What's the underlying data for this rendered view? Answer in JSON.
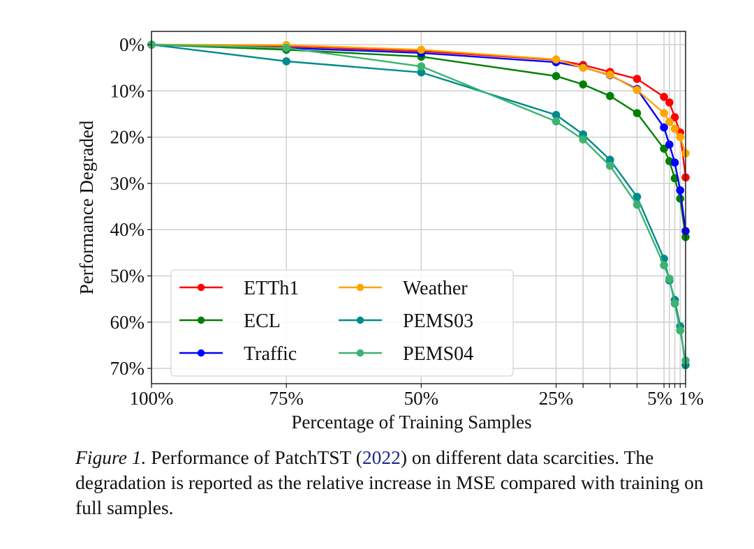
{
  "chart_data": {
    "type": "line",
    "title": "",
    "xlabel": "Percentage of Training Samples",
    "ylabel": "Performance Degraded",
    "x": [
      100,
      75,
      50,
      25,
      20,
      15,
      10,
      5,
      4,
      3,
      2,
      1
    ],
    "x_unit": "%",
    "xlim": [
      100,
      1
    ],
    "ylim": [
      0,
      70
    ],
    "y_inverted": true,
    "x_ticks": [
      100,
      75,
      50,
      25,
      5,
      1
    ],
    "x_tick_labels": [
      "100%",
      "75%",
      "50%",
      "25%",
      "5%",
      "1%"
    ],
    "x_minor_gridlines": [
      20,
      15,
      10,
      4,
      3,
      2
    ],
    "y_ticks": [
      0,
      10,
      20,
      30,
      40,
      50,
      60,
      70
    ],
    "y_tick_labels": [
      "0%",
      "10%",
      "20%",
      "30%",
      "40%",
      "50%",
      "60%",
      "70%"
    ],
    "grid": true,
    "legend_position": "bottom-left",
    "legend_columns": 2,
    "series": [
      {
        "name": "ETTh1",
        "color": "#ff0000",
        "values": [
          0,
          0.3,
          1.4,
          3.3,
          4.4,
          5.9,
          7.4,
          11.3,
          12.5,
          15.7,
          19.0,
          28.7
        ]
      },
      {
        "name": "ECL",
        "color": "#008000",
        "values": [
          0,
          1.1,
          2.6,
          6.8,
          8.6,
          11.1,
          14.8,
          22.5,
          25.2,
          28.9,
          33.3,
          41.6
        ]
      },
      {
        "name": "Traffic",
        "color": "#0000ff",
        "values": [
          0,
          0.7,
          1.8,
          3.8,
          4.9,
          6.6,
          9.6,
          17.9,
          21.6,
          25.5,
          31.5,
          40.3
        ]
      },
      {
        "name": "Weather",
        "color": "#ffa500",
        "values": [
          0,
          0.1,
          1.1,
          3.2,
          5.0,
          6.5,
          9.8,
          14.8,
          16.7,
          18.2,
          20.0,
          23.5
        ]
      },
      {
        "name": "PEMS03",
        "color": "#008b8b",
        "values": [
          0,
          3.6,
          6.0,
          15.2,
          19.4,
          24.9,
          32.9,
          46.3,
          51.0,
          55.2,
          60.9,
          69.3
        ]
      },
      {
        "name": "PEMS04",
        "color": "#3cb371",
        "values": [
          0,
          0.7,
          4.7,
          16.6,
          20.5,
          26.2,
          34.6,
          47.7,
          50.6,
          56.0,
          61.8,
          68.3
        ]
      }
    ]
  },
  "caption": {
    "label": "Figure 1.",
    "text_before_cite": " Performance of PatchTST (",
    "cite": "2022",
    "text_after_cite": ") on different data scarcities. The degradation is reported as the relative increase in MSE compared with training on full samples."
  }
}
